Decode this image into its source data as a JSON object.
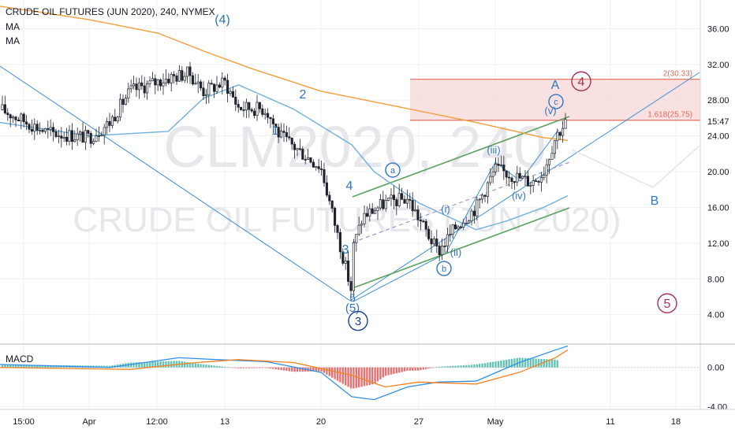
{
  "header": {
    "title": "CRUDE OIL FUTURES (JUN 2020), 240, NYMEX",
    "indicator_1": "MA",
    "indicator_2": "MA",
    "macd_label": "MACD"
  },
  "watermark": {
    "symbol": "CLM2020, 240",
    "name": "CRUDE OIL FUTURES (JUN 2020)"
  },
  "colors": {
    "background": "#ffffff",
    "grid": "#eef0f3",
    "candle": "#1e222d",
    "ma_fast": "#6fb0dc",
    "ma_slow": "#f19d38",
    "wave_line": "#3d8fd6",
    "channel": "#5aa260",
    "fib_box": "#f7d7d7",
    "fib_line": "#e26b62",
    "wave_blue": "#2e75c2",
    "wave_red": "#a8325a",
    "macd_line": "#2f8fe8",
    "signal_line": "#f5811f",
    "hist_pos": "#66c2b3",
    "hist_neg": "#e57373",
    "axis_text": "#131722"
  },
  "chart_data": [
    {
      "type": "line",
      "subtype": "candlestick",
      "title": "CRUDE OIL FUTURES (JUN 2020), 240, NYMEX",
      "x_axis": {
        "type": "date",
        "ticks": [
          "15:00",
          "Apr",
          "12:00",
          "13",
          "20",
          "27",
          "May",
          "11",
          "18"
        ]
      },
      "y_axis": {
        "ticks": [
          4.0,
          8.0,
          12.0,
          16.0,
          20.0,
          24.0,
          28.0,
          32.0,
          36.0
        ],
        "range": [
          0.8,
          39.2
        ],
        "last_price_label": "15:47"
      },
      "grid": true,
      "price_path": {
        "x": [
          "2020-03-27",
          "2020-03-30",
          "2020-04-01",
          "2020-04-02",
          "2020-04-03",
          "2020-04-06",
          "2020-04-08",
          "2020-04-10",
          "2020-04-13",
          "2020-04-14",
          "2020-04-16",
          "2020-04-17",
          "2020-04-20",
          "2020-04-21",
          "2020-04-21",
          "2020-04-22",
          "2020-04-24",
          "2020-04-26",
          "2020-04-28",
          "2020-04-29",
          "2020-04-30",
          "2020-05-01",
          "2020-05-04",
          "2020-05-05",
          "2020-05-06",
          "2020-05-07"
        ],
        "y": [
          27.0,
          24.4,
          23.8,
          25.5,
          29.0,
          30.5,
          31.0,
          29.0,
          30.0,
          27.2,
          27.0,
          24.0,
          20.5,
          6.5,
          11.0,
          15.0,
          16.5,
          17.0,
          11.0,
          14.0,
          16.0,
          20.3,
          18.8,
          20.0,
          24.0,
          25.8
        ]
      },
      "series": [
        {
          "name": "MA",
          "x": [
            "2020-03-27",
            "2020-04-01",
            "2020-04-06",
            "2020-04-10",
            "2020-04-14",
            "2020-04-18",
            "2020-04-21",
            "2020-04-23",
            "2020-04-27",
            "2020-04-30",
            "2020-05-02",
            "2020-05-05",
            "2020-05-07"
          ],
          "y": [
            25.5,
            24.0,
            24.5,
            28.2,
            29.7,
            27.0,
            23.0,
            20.0,
            16.5,
            13.5,
            14.5,
            16.0,
            17.3
          ]
        },
        {
          "name": "MA",
          "x": [
            "2020-03-27",
            "2020-04-01",
            "2020-04-05",
            "2020-04-10",
            "2020-04-15",
            "2020-04-20",
            "2020-04-25",
            "2020-04-30",
            "2020-05-05",
            "2020-05-07"
          ],
          "y": [
            38.5,
            37.0,
            35.5,
            33.5,
            31.5,
            29.0,
            27.3,
            25.5,
            23.8,
            23.5
          ]
        }
      ],
      "overlays": {
        "fibonacci": [
          {
            "label": "2(30.33)",
            "value": 30.33
          },
          {
            "label": "1.618(25.75)",
            "value": 25.75
          }
        ],
        "wave_labels": [
          "(4)",
          "1",
          "2",
          "3",
          "4",
          "5",
          "(5)",
          "3",
          "a",
          "b",
          "c",
          "(i)",
          "(ii)",
          "(iii)",
          "(iv)",
          "(v)",
          "A",
          "B",
          "4",
          "5"
        ]
      }
    },
    {
      "type": "bar",
      "title": "MACD",
      "y_axis": {
        "ticks": [
          0.0,
          -4.0
        ],
        "range": [
          -4.3,
          2.4
        ]
      },
      "series": [
        {
          "name": "MACD",
          "x": [
            "2020-03-27",
            "2020-04-02",
            "2020-04-07",
            "2020-04-12",
            "2020-04-16",
            "2020-04-20",
            "2020-04-21",
            "2020-04-23",
            "2020-04-26",
            "2020-04-28",
            "2020-04-30",
            "2020-05-03",
            "2020-05-06",
            "2020-05-07"
          ],
          "y": [
            0.3,
            0.0,
            1.0,
            0.8,
            0.6,
            -0.5,
            -3.0,
            -3.3,
            -2.0,
            -1.5,
            -1.4,
            0.5,
            1.8,
            2.2
          ]
        },
        {
          "name": "Signal",
          "x": [
            "2020-03-27",
            "2020-04-03",
            "2020-04-09",
            "2020-04-14",
            "2020-04-18",
            "2020-04-21",
            "2020-04-24",
            "2020-04-27",
            "2020-04-30",
            "2020-05-03",
            "2020-05-06",
            "2020-05-07"
          ],
          "y": [
            0.0,
            -0.2,
            0.5,
            0.8,
            0.5,
            -0.8,
            -2.0,
            -1.5,
            -1.7,
            -0.5,
            1.0,
            1.8
          ]
        }
      ]
    }
  ]
}
